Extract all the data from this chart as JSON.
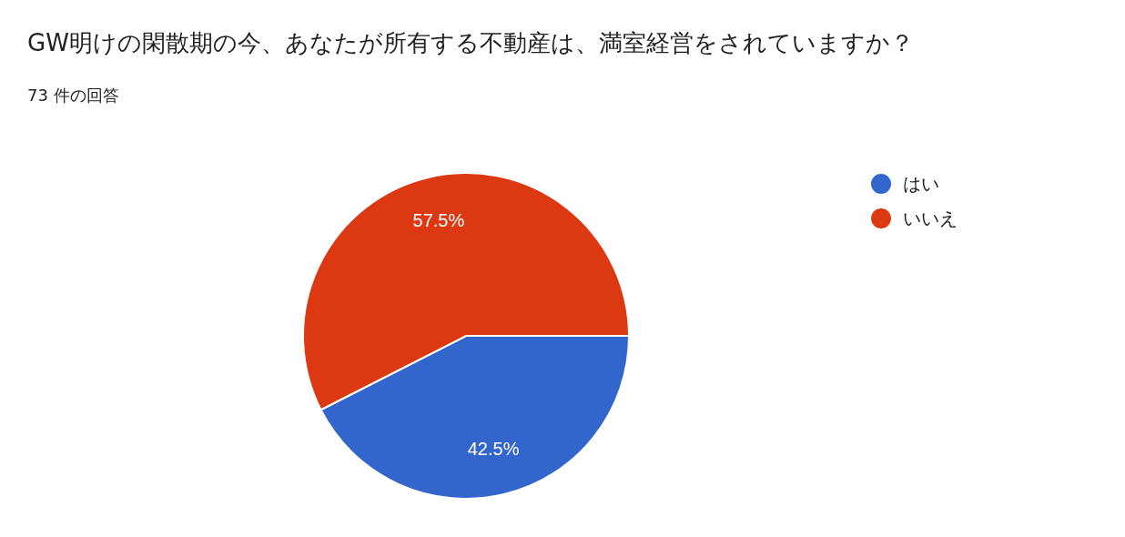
{
  "chart_data": {
    "type": "pie",
    "title": "GW明けの閑散期の今、あなたが所有する不動産は、満室経営をされていますか？",
    "subtitle": "73 件の回答",
    "categories": [
      "はい",
      "いいえ"
    ],
    "values": [
      42.5,
      57.5
    ],
    "colors": [
      "#3366cc",
      "#dc3912"
    ],
    "value_labels": [
      "42.5%",
      "57.5%"
    ],
    "legend": "top right"
  }
}
